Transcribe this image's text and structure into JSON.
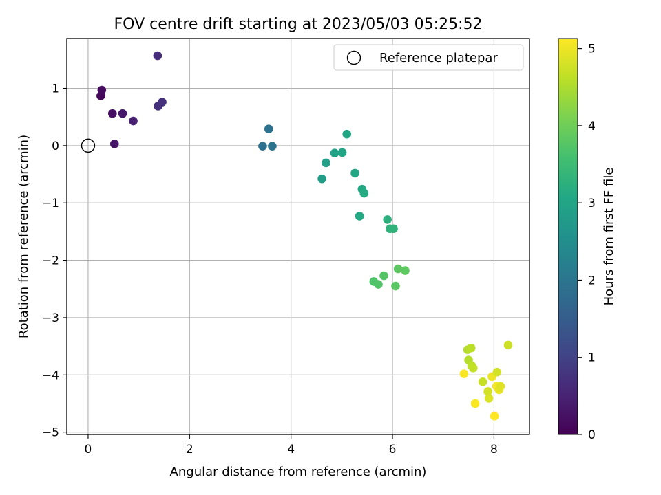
{
  "chart_data": {
    "type": "scatter",
    "title": "FOV centre drift starting at 2023/05/03 05:25:52",
    "xlabel": "Angular distance from reference (arcmin)",
    "ylabel": "Rotation from reference (arcmin)",
    "xlim": [
      -0.42,
      8.7
    ],
    "ylim": [
      -5.04,
      1.87
    ],
    "x_ticks": [
      0,
      2,
      4,
      6,
      8
    ],
    "x_tick_labels": [
      "0",
      "2",
      "4",
      "6",
      "8"
    ],
    "y_ticks": [
      1,
      0,
      -1,
      -2,
      -3,
      -4,
      -5
    ],
    "y_tick_labels": [
      "1",
      "0",
      "−1",
      "−2",
      "−3",
      "−4",
      "−5"
    ],
    "grid": true,
    "legend": {
      "placement": "top-right",
      "entries": [
        {
          "label": "Reference platepar",
          "marker": "open-circle"
        }
      ]
    },
    "reference_point": {
      "x": 0,
      "y": 0
    },
    "colorbar": {
      "label": "Hours from first FF file",
      "colormap": "viridis",
      "min": 0,
      "max": 5.13,
      "ticks": [
        0,
        1,
        2,
        3,
        4,
        5
      ],
      "tick_labels": [
        "0",
        "1",
        "2",
        "3",
        "4",
        "5"
      ],
      "colors": [
        "#440154",
        "#482475",
        "#414487",
        "#355f8d",
        "#2a788e",
        "#21918c",
        "#22a884",
        "#44bf70",
        "#7ad151",
        "#bddf26",
        "#fde725"
      ]
    },
    "series": [
      {
        "points": [
          {
            "x": 0.25,
            "y": 0.87,
            "t": 0.1
          },
          {
            "x": 0.27,
            "y": 0.97,
            "t": 0.15
          },
          {
            "x": 0.48,
            "y": 0.56,
            "t": 0.2
          },
          {
            "x": 0.52,
            "y": 0.03,
            "t": 0.3
          },
          {
            "x": 0.68,
            "y": 0.56,
            "t": 0.35
          },
          {
            "x": 0.89,
            "y": 0.43,
            "t": 0.45
          },
          {
            "x": 1.37,
            "y": 1.57,
            "t": 0.65
          },
          {
            "x": 1.38,
            "y": 0.69,
            "t": 0.7
          },
          {
            "x": 1.46,
            "y": 0.76,
            "t": 0.72
          },
          {
            "x": 3.44,
            "y": -0.01,
            "t": 1.9
          },
          {
            "x": 3.56,
            "y": 0.29,
            "t": 1.92
          },
          {
            "x": 3.63,
            "y": -0.01,
            "t": 1.95
          },
          {
            "x": 4.61,
            "y": -0.58,
            "t": 2.85
          },
          {
            "x": 4.69,
            "y": -0.3,
            "t": 2.9
          },
          {
            "x": 4.86,
            "y": -0.13,
            "t": 2.95
          },
          {
            "x": 5.01,
            "y": -0.12,
            "t": 3.0
          },
          {
            "x": 5.1,
            "y": 0.2,
            "t": 3.05
          },
          {
            "x": 5.26,
            "y": -0.48,
            "t": 3.05
          },
          {
            "x": 5.35,
            "y": -1.23,
            "t": 3.1
          },
          {
            "x": 5.4,
            "y": -0.76,
            "t": 3.1
          },
          {
            "x": 5.44,
            "y": -0.83,
            "t": 3.12
          },
          {
            "x": 5.9,
            "y": -1.29,
            "t": 3.25
          },
          {
            "x": 5.95,
            "y": -1.45,
            "t": 3.28
          },
          {
            "x": 6.02,
            "y": -1.45,
            "t": 3.3
          },
          {
            "x": 5.63,
            "y": -2.37,
            "t": 3.7
          },
          {
            "x": 5.72,
            "y": -2.42,
            "t": 3.72
          },
          {
            "x": 5.83,
            "y": -2.27,
            "t": 3.75
          },
          {
            "x": 6.06,
            "y": -2.45,
            "t": 3.8
          },
          {
            "x": 6.11,
            "y": -2.15,
            "t": 3.82
          },
          {
            "x": 6.25,
            "y": -2.18,
            "t": 3.85
          },
          {
            "x": 7.41,
            "y": -3.98,
            "t": 5.1
          },
          {
            "x": 7.48,
            "y": -3.56,
            "t": 4.55
          },
          {
            "x": 7.5,
            "y": -3.74,
            "t": 4.55
          },
          {
            "x": 7.55,
            "y": -3.53,
            "t": 4.6
          },
          {
            "x": 7.56,
            "y": -3.84,
            "t": 4.6
          },
          {
            "x": 7.59,
            "y": -3.88,
            "t": 4.65
          },
          {
            "x": 7.63,
            "y": -4.5,
            "t": 5.1
          },
          {
            "x": 7.78,
            "y": -4.12,
            "t": 4.7
          },
          {
            "x": 7.88,
            "y": -4.29,
            "t": 4.8
          },
          {
            "x": 7.9,
            "y": -4.41,
            "t": 4.85
          },
          {
            "x": 7.96,
            "y": -4.03,
            "t": 5.0
          },
          {
            "x": 8.01,
            "y": -4.72,
            "t": 5.13
          },
          {
            "x": 8.05,
            "y": -4.2,
            "t": 5.05
          },
          {
            "x": 8.06,
            "y": -3.95,
            "t": 4.8
          },
          {
            "x": 8.1,
            "y": -4.26,
            "t": 4.95
          },
          {
            "x": 8.13,
            "y": -4.2,
            "t": 4.9
          },
          {
            "x": 8.28,
            "y": -3.48,
            "t": 4.75
          }
        ]
      }
    ]
  }
}
